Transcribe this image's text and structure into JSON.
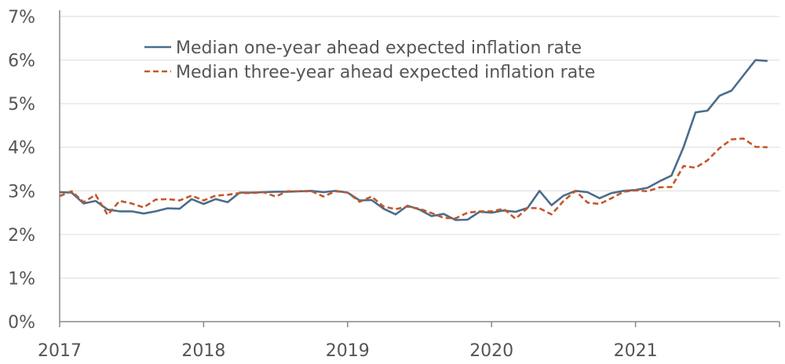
{
  "chart_data": {
    "type": "line",
    "title": "",
    "xlabel": "",
    "ylabel": "",
    "ylim": [
      0,
      7
    ],
    "xlim": [
      "2017-01",
      "2022-01"
    ],
    "y_tick_labels": [
      "0%",
      "1%",
      "2%",
      "3%",
      "4%",
      "5%",
      "6%",
      "7%"
    ],
    "x_tick_labels": [
      "2017",
      "2018",
      "2019",
      "2020",
      "2021"
    ],
    "grid": "horizontal",
    "legend_position": "top-center",
    "x": [
      "2017-01",
      "2017-02",
      "2017-03",
      "2017-04",
      "2017-05",
      "2017-06",
      "2017-07",
      "2017-08",
      "2017-09",
      "2017-10",
      "2017-11",
      "2017-12",
      "2018-01",
      "2018-02",
      "2018-03",
      "2018-04",
      "2018-05",
      "2018-06",
      "2018-07",
      "2018-08",
      "2018-09",
      "2018-10",
      "2018-11",
      "2018-12",
      "2019-01",
      "2019-02",
      "2019-03",
      "2019-04",
      "2019-05",
      "2019-06",
      "2019-07",
      "2019-08",
      "2019-09",
      "2019-10",
      "2019-11",
      "2019-12",
      "2020-01",
      "2020-02",
      "2020-03",
      "2020-04",
      "2020-05",
      "2020-06",
      "2020-07",
      "2020-08",
      "2020-09",
      "2020-10",
      "2020-11",
      "2020-12",
      "2021-01",
      "2021-02",
      "2021-03",
      "2021-04",
      "2021-05",
      "2021-06",
      "2021-07",
      "2021-08",
      "2021-09",
      "2021-10",
      "2021-11",
      "2021-12"
    ],
    "series": [
      {
        "name": "Median one-year ahead expected inflation rate",
        "color": "#4a6d8c",
        "dash": "solid",
        "values": [
          2.97,
          2.96,
          2.71,
          2.77,
          2.57,
          2.53,
          2.53,
          2.48,
          2.53,
          2.6,
          2.59,
          2.81,
          2.7,
          2.81,
          2.74,
          2.96,
          2.96,
          2.97,
          2.98,
          2.98,
          2.99,
          3.0,
          2.97,
          3.0,
          2.96,
          2.78,
          2.79,
          2.59,
          2.46,
          2.66,
          2.57,
          2.42,
          2.47,
          2.33,
          2.34,
          2.52,
          2.5,
          2.55,
          2.52,
          2.61,
          3.0,
          2.67,
          2.89,
          3.0,
          2.97,
          2.83,
          2.95,
          3.0,
          3.02,
          3.07,
          3.22,
          3.35,
          4.0,
          4.8,
          4.84,
          5.18,
          5.3,
          5.65,
          6.0,
          5.98
        ]
      },
      {
        "name": "Median three-year ahead expected inflation rate",
        "color": "#c4572a",
        "dash": "dashed",
        "values": [
          2.88,
          2.99,
          2.74,
          2.91,
          2.45,
          2.77,
          2.71,
          2.62,
          2.8,
          2.81,
          2.78,
          2.89,
          2.78,
          2.89,
          2.91,
          2.95,
          2.95,
          2.97,
          2.87,
          2.99,
          2.99,
          2.99,
          2.87,
          2.99,
          2.96,
          2.75,
          2.87,
          2.64,
          2.58,
          2.64,
          2.59,
          2.49,
          2.38,
          2.37,
          2.5,
          2.53,
          2.53,
          2.59,
          2.36,
          2.61,
          2.6,
          2.46,
          2.77,
          3.0,
          2.73,
          2.7,
          2.83,
          2.98,
          3.01,
          2.99,
          3.08,
          3.09,
          3.57,
          3.53,
          3.7,
          3.98,
          4.18,
          4.2,
          4.01,
          4.0
        ]
      }
    ]
  }
}
